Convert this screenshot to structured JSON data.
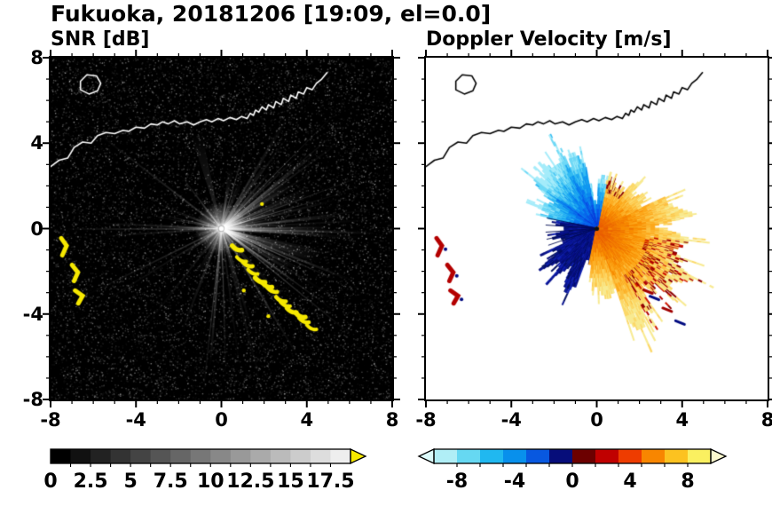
{
  "title": "Fukuoka, 20181206 [19:09, el=0.0]",
  "panels": [
    {
      "title": "SNR [dB]"
    },
    {
      "title": "Doppler Velocity [m/s]"
    }
  ],
  "chart_data": [
    {
      "type": "heatmap",
      "title": "SNR [dB]",
      "xlabel": "",
      "ylabel": "",
      "xlim": [
        -8,
        8
      ],
      "ylim": [
        -8,
        8
      ],
      "xticks": [
        -8,
        -4,
        0,
        4,
        8
      ],
      "yticks": [
        8,
        4,
        0,
        -4,
        -8
      ],
      "minor_tick_step": 1,
      "grid": false,
      "colorbar": {
        "orientation": "horizontal",
        "values": [
          0,
          2.5,
          5,
          7.5,
          10,
          12.5,
          15,
          17.5
        ],
        "range": [
          0,
          18.75
        ],
        "colors": [
          "#000000",
          "#111111",
          "#222222",
          "#333333",
          "#444444",
          "#555555",
          "#666666",
          "#777777",
          "#888888",
          "#999999",
          "#aaaaaa",
          "#bbbbbb",
          "#cccccc",
          "#dddddd",
          "#eeeeee"
        ],
        "over_arrow_color": "#f6e800"
      },
      "radar_center": [
        0,
        0
      ],
      "content": "black speckled noise field with bright white radial beams emanating from radar at origin, dense bright fan toward east",
      "clutter_yellow_arcs": [
        [
          [
            -7.5,
            -0.45
          ],
          [
            -7.25,
            -0.8
          ],
          [
            -7.45,
            -1.25
          ]
        ],
        [
          [
            -7.0,
            -1.7
          ],
          [
            -6.72,
            -2.05
          ],
          [
            -6.9,
            -2.45
          ]
        ],
        [
          [
            -6.85,
            -2.9
          ],
          [
            -6.5,
            -3.15
          ],
          [
            -6.7,
            -3.5
          ]
        ]
      ],
      "clutter_yellow_chain": [
        [
          0.7,
          -1.0
        ],
        [
          1.0,
          -1.35
        ],
        [
          1.25,
          -1.7
        ],
        [
          1.5,
          -2.05
        ],
        [
          1.8,
          -2.35
        ],
        [
          2.1,
          -2.65
        ],
        [
          2.4,
          -2.95
        ],
        [
          2.7,
          -3.25
        ],
        [
          3.0,
          -3.5
        ],
        [
          3.3,
          -3.8
        ],
        [
          3.6,
          -4.1
        ],
        [
          3.9,
          -4.4
        ],
        [
          4.3,
          -4.6
        ]
      ]
    },
    {
      "type": "heatmap",
      "title": "Doppler Velocity [m/s]",
      "xlabel": "",
      "ylabel": "",
      "xlim": [
        -8,
        8
      ],
      "ylim": [
        -8,
        8
      ],
      "xticks": [
        -8,
        -4,
        0,
        4,
        8
      ],
      "yticks": [
        8,
        4,
        0,
        -4,
        -8
      ],
      "minor_tick_step": 1,
      "grid": false,
      "colorbar": {
        "orientation": "horizontal",
        "values": [
          -8,
          -4,
          0,
          4,
          8
        ],
        "range": [
          -9.6,
          9.6
        ],
        "colors": [
          "#b0eef6",
          "#66d8f2",
          "#20b8f0",
          "#0890ec",
          "#0858e0",
          "#060d7a",
          "#6c0000",
          "#c00000",
          "#ee3c00",
          "#f88600",
          "#fcc220",
          "#faf060"
        ],
        "under_arrow_color": "#dcfafa",
        "over_arrow_color": "#fdface"
      },
      "radar_center": [
        0,
        0
      ],
      "content": "velocity echo around radar: cyan-blue negative lobe to NW, dark navy wedge to SW, orange-yellow positive lobe E-SE with dark red outer streaks, dark red clutter arcs at far west",
      "clutter_red_arcs": [
        [
          [
            -7.5,
            -0.45
          ],
          [
            -7.25,
            -0.8
          ],
          [
            -7.45,
            -1.25
          ]
        ],
        [
          [
            -7.0,
            -1.7
          ],
          [
            -6.72,
            -2.05
          ],
          [
            -6.9,
            -2.45
          ]
        ],
        [
          [
            -6.85,
            -2.9
          ],
          [
            -6.5,
            -3.15
          ],
          [
            -6.7,
            -3.5
          ]
        ]
      ]
    }
  ],
  "coastline": {
    "main": [
      [
        -8,
        2.9
      ],
      [
        -7.6,
        3.2
      ],
      [
        -7.2,
        3.3
      ],
      [
        -6.9,
        3.8
      ],
      [
        -6.5,
        4.05
      ],
      [
        -6.1,
        4.0
      ],
      [
        -5.8,
        4.35
      ],
      [
        -5.4,
        4.5
      ],
      [
        -5.0,
        4.45
      ],
      [
        -4.6,
        4.6
      ],
      [
        -4.35,
        4.55
      ],
      [
        -4.0,
        4.75
      ],
      [
        -3.6,
        4.7
      ],
      [
        -3.3,
        4.9
      ],
      [
        -3.0,
        4.85
      ],
      [
        -2.75,
        5.0
      ],
      [
        -2.5,
        4.9
      ],
      [
        -2.2,
        5.05
      ],
      [
        -1.95,
        4.9
      ],
      [
        -1.6,
        5.0
      ],
      [
        -1.3,
        4.85
      ],
      [
        -1.0,
        5.0
      ],
      [
        -0.7,
        5.1
      ],
      [
        -0.45,
        5.0
      ],
      [
        -0.15,
        5.15
      ],
      [
        0.1,
        5.05
      ],
      [
        0.4,
        5.2
      ],
      [
        0.7,
        5.1
      ],
      [
        0.95,
        5.25
      ],
      [
        1.2,
        5.15
      ],
      [
        1.35,
        5.4
      ],
      [
        1.5,
        5.3
      ],
      [
        1.6,
        5.55
      ],
      [
        1.75,
        5.45
      ],
      [
        1.9,
        5.7
      ],
      [
        2.1,
        5.55
      ],
      [
        2.2,
        5.8
      ],
      [
        2.45,
        5.65
      ],
      [
        2.55,
        5.95
      ],
      [
        2.8,
        5.8
      ],
      [
        2.9,
        6.1
      ],
      [
        3.15,
        5.95
      ],
      [
        3.25,
        6.25
      ],
      [
        3.5,
        6.1
      ],
      [
        3.6,
        6.4
      ],
      [
        3.85,
        6.3
      ],
      [
        4.0,
        6.6
      ],
      [
        4.25,
        6.5
      ],
      [
        4.45,
        6.8
      ],
      [
        4.7,
        7.0
      ],
      [
        4.95,
        7.3
      ]
    ],
    "island": [
      [
        -6.6,
        6.5
      ],
      [
        -6.2,
        6.3
      ],
      [
        -5.8,
        6.45
      ],
      [
        -5.65,
        6.8
      ],
      [
        -5.85,
        7.15
      ],
      [
        -6.3,
        7.2
      ],
      [
        -6.6,
        6.9
      ]
    ]
  }
}
